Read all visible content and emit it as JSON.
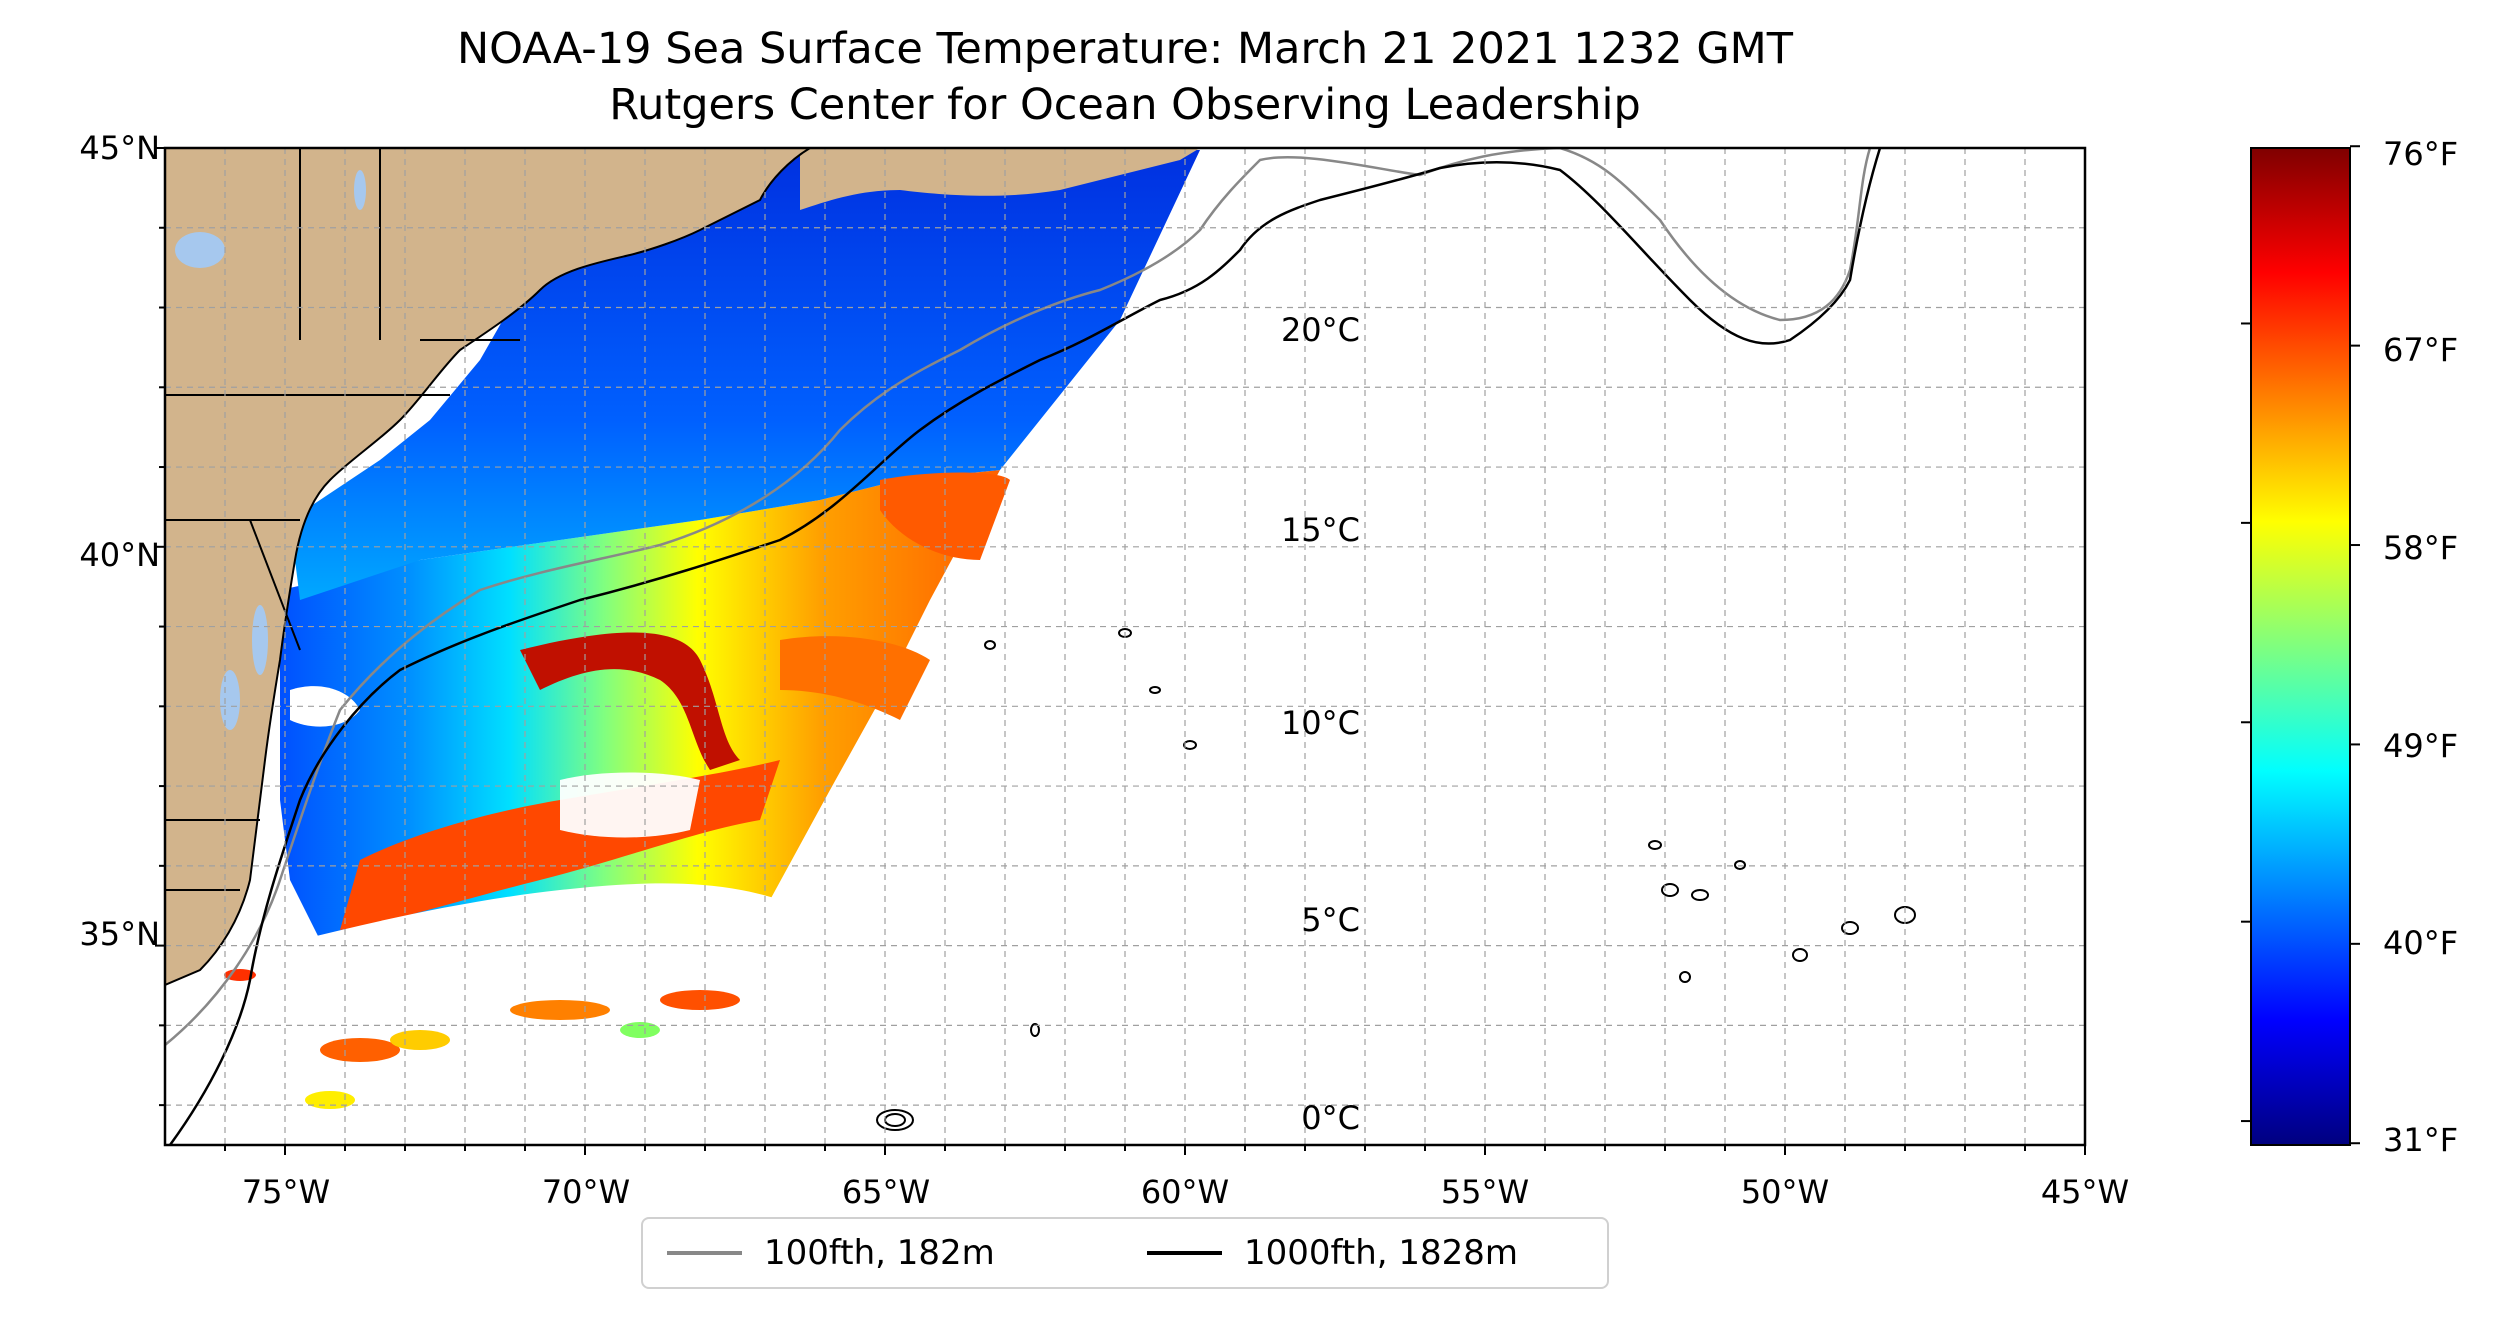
{
  "title": {
    "line1": "NOAA-19 Sea Surface Temperature: March 21 2021 1232 GMT",
    "line2": "Rutgers Center for Ocean Observing Leadership"
  },
  "map": {
    "lon_range": [
      -77,
      -45
    ],
    "lat_range": [
      32.5,
      45
    ],
    "x_ticks": [
      "75°W",
      "70°W",
      "65°W",
      "60°W",
      "55°W",
      "50°W",
      "45°W"
    ],
    "y_ticks": [
      "45°N",
      "40°N",
      "35°N"
    ],
    "gridlines": true,
    "land_color": "#d2b48c",
    "ocean_color": "#ffffff",
    "lake_color": "#a6c8ee"
  },
  "legend": {
    "placement": "bottom-center",
    "items": [
      {
        "label": "100fth, 182m",
        "color": "#888888"
      },
      {
        "label": "1000fth, 1828m",
        "color": "#000000"
      }
    ]
  },
  "colorbar": {
    "colormap": "jet",
    "celsius_ticks": [
      "20°C",
      "15°C",
      "10°C",
      "5°C",
      "0°C"
    ],
    "fahrenheit_ticks": [
      "76°F",
      "67°F",
      "58°F",
      "49°F",
      "40°F",
      "31°F"
    ],
    "range_celsius": [
      -0.6,
      24.4
    ]
  }
}
